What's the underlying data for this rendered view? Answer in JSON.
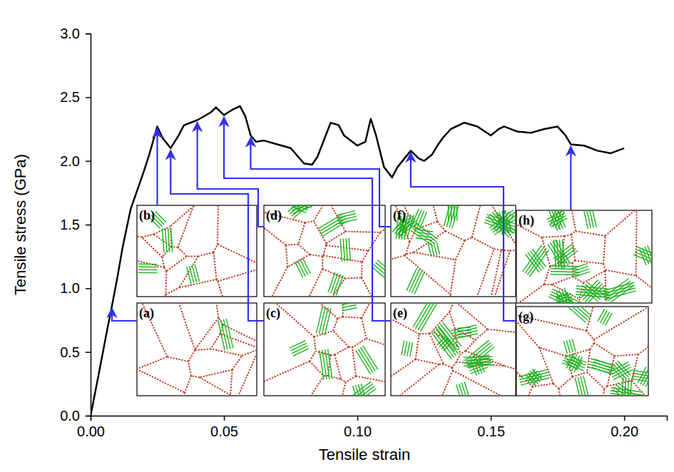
{
  "chart_data": {
    "type": "line",
    "x_label": "Tensile strain",
    "y_label": "Tensile stress (GPa)",
    "xlim": [
      0,
      0.216
    ],
    "ylim": [
      0,
      3.0
    ],
    "xticks": [
      {
        "value": 0,
        "label": "0.00"
      },
      {
        "value": 0.05,
        "label": "0.05"
      },
      {
        "value": 0.1,
        "label": "0.10"
      },
      {
        "value": 0.15,
        "label": "0.15"
      },
      {
        "value": 0.2,
        "label": "0.20"
      }
    ],
    "yticks": [
      {
        "value": 0,
        "label": "0.0"
      },
      {
        "value": 0.5,
        "label": "0.5"
      },
      {
        "value": 1,
        "label": "1.0"
      },
      {
        "value": 1.5,
        "label": "1.5"
      },
      {
        "value": 2,
        "label": "2.0"
      },
      {
        "value": 2.5,
        "label": "2.5"
      },
      {
        "value": 3,
        "label": "3.0"
      }
    ],
    "x": [
      0,
      0.003,
      0.006,
      0.008,
      0.01,
      0.012,
      0.015,
      0.018,
      0.02,
      0.022,
      0.025,
      0.027,
      0.03,
      0.033,
      0.035,
      0.04,
      0.045,
      0.047,
      0.05,
      0.053,
      0.056,
      0.058,
      0.06,
      0.062,
      0.065,
      0.07,
      0.075,
      0.08,
      0.083,
      0.085,
      0.09,
      0.093,
      0.095,
      0.1,
      0.103,
      0.105,
      0.107,
      0.11,
      0.113,
      0.115,
      0.12,
      0.123,
      0.125,
      0.128,
      0.13,
      0.132,
      0.135,
      0.14,
      0.145,
      0.15,
      0.153,
      0.155,
      0.16,
      0.165,
      0.17,
      0.175,
      0.178,
      0.18,
      0.185,
      0.19,
      0.195,
      0.2
    ],
    "series": [
      {
        "color": "#000000",
        "line_style": "solid",
        "values": [
          0,
          0.32,
          0.65,
          0.86,
          1.08,
          1.32,
          1.62,
          1.8,
          1.92,
          2.05,
          2.27,
          2.18,
          2.1,
          2.2,
          2.28,
          2.32,
          2.38,
          2.42,
          2.36,
          2.4,
          2.43,
          2.35,
          2.2,
          2.15,
          2.16,
          2.13,
          2.1,
          1.98,
          1.97,
          2.03,
          2.3,
          2.28,
          2.2,
          2.12,
          2.15,
          2.33,
          2.2,
          1.95,
          1.87,
          1.95,
          2.08,
          2.02,
          2.0,
          2.05,
          2.12,
          2.18,
          2.25,
          2.3,
          2.27,
          2.2,
          2.25,
          2.27,
          2.23,
          2.22,
          2.25,
          2.27,
          2.2,
          2.13,
          2.12,
          2.08,
          2.06,
          2.1
        ]
      }
    ],
    "annotations": [
      {
        "label": "(a)",
        "x": 0.008
      },
      {
        "label": "(b)",
        "x": 0.025
      },
      {
        "label": "(c)",
        "x": 0.03
      },
      {
        "label": "(d)",
        "x": 0.04
      },
      {
        "label": "(e)",
        "x": 0.05
      },
      {
        "label": "(f)",
        "x": 0.06
      },
      {
        "label": "(g)",
        "x": 0.12
      },
      {
        "label": "(h)",
        "x": 0.18
      }
    ],
    "grid": false
  }
}
